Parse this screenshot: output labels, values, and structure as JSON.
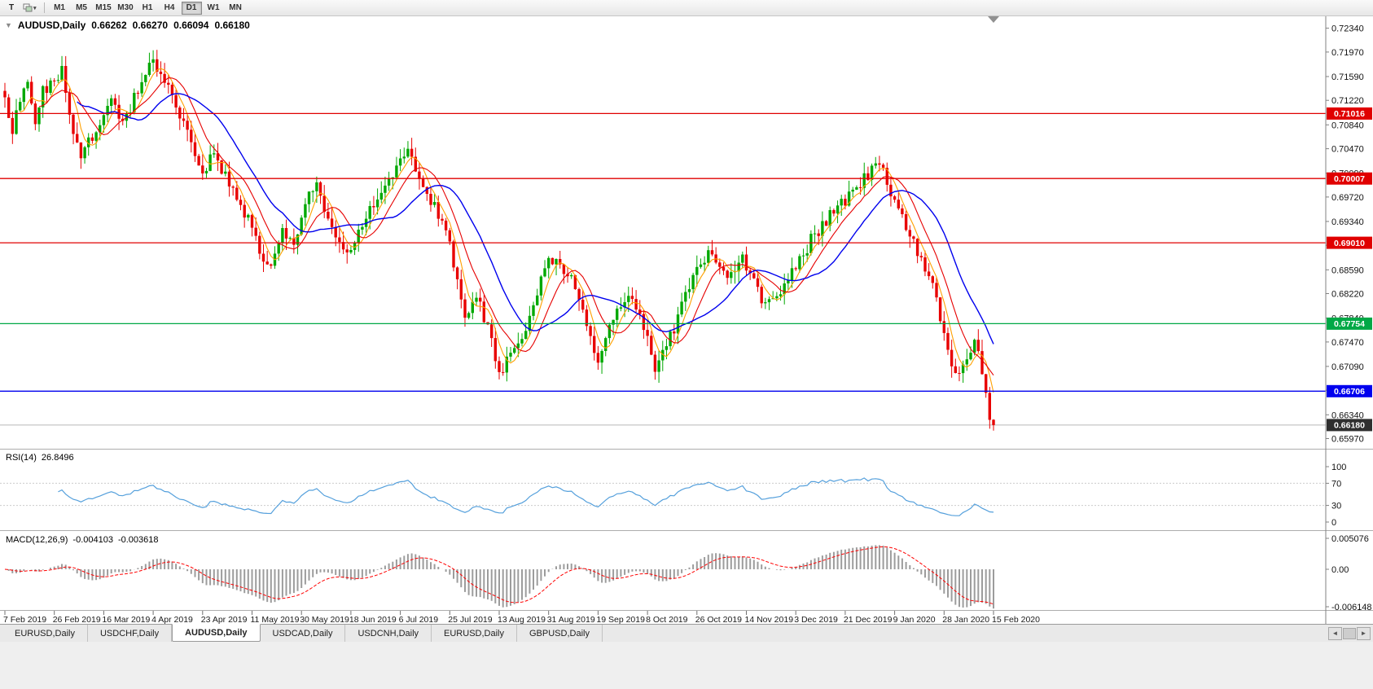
{
  "toolbar": {
    "text_tool_label": "T",
    "dropdown_arrow": "▾",
    "timeframes": [
      "M1",
      "M5",
      "M15",
      "M30",
      "H1",
      "H4",
      "D1",
      "W1",
      "MN"
    ],
    "active_timeframe": "D1"
  },
  "chart_header": {
    "collapse_arrow": "▼",
    "symbol": "AUDUSD,Daily",
    "open": "0.66262",
    "high": "0.66270",
    "low": "0.66094",
    "close": "0.66180"
  },
  "price_axis": {
    "ticks": [
      "0.72340",
      "0.71970",
      "0.71590",
      "0.71220",
      "0.70840",
      "0.70470",
      "0.70090",
      "0.69720",
      "0.69340",
      "0.68970",
      "0.68590",
      "0.68220",
      "0.67840",
      "0.67470",
      "0.67090",
      "0.66720",
      "0.66340",
      "0.65970"
    ]
  },
  "chart_data": {
    "type": "candlestick",
    "symbol": "AUDUSD",
    "timeframe": "Daily",
    "candle_count": 261,
    "seed": 20200215,
    "noise": 0.002,
    "wick": 0.0018,
    "price_range": {
      "top": 0.72525,
      "bottom": 0.65825
    },
    "last_candle": {
      "o": 0.66262,
      "h": 0.6627,
      "l": 0.66094,
      "c": 0.6618
    },
    "current_price": 0.6618,
    "current_price_label": "0.66180",
    "price_anchors": [
      [
        0,
        0.712
      ],
      [
        2,
        0.7078
      ],
      [
        4,
        0.7122
      ],
      [
        6,
        0.7148
      ],
      [
        8,
        0.7092
      ],
      [
        10,
        0.7138
      ],
      [
        13,
        0.715
      ],
      [
        15,
        0.7168
      ],
      [
        17,
        0.7098
      ],
      [
        20,
        0.7035
      ],
      [
        23,
        0.7068
      ],
      [
        26,
        0.7105
      ],
      [
        29,
        0.7122
      ],
      [
        31,
        0.7082
      ],
      [
        34,
        0.7128
      ],
      [
        37,
        0.7158
      ],
      [
        39,
        0.7188
      ],
      [
        41,
        0.716
      ],
      [
        44,
        0.7132
      ],
      [
        47,
        0.7088
      ],
      [
        50,
        0.7042
      ],
      [
        52,
        0.7012
      ],
      [
        55,
        0.7038
      ],
      [
        58,
        0.7002
      ],
      [
        61,
        0.6968
      ],
      [
        64,
        0.6935
      ],
      [
        67,
        0.6888
      ],
      [
        70,
        0.6868
      ],
      [
        73,
        0.6918
      ],
      [
        76,
        0.6905
      ],
      [
        78,
        0.6932
      ],
      [
        80,
        0.6978
      ],
      [
        82,
        0.6988
      ],
      [
        85,
        0.6932
      ],
      [
        88,
        0.6898
      ],
      [
        91,
        0.6882
      ],
      [
        94,
        0.6928
      ],
      [
        97,
        0.6962
      ],
      [
        100,
        0.6992
      ],
      [
        102,
        0.7012
      ],
      [
        104,
        0.704
      ],
      [
        106,
        0.7044
      ],
      [
        108,
        0.7018
      ],
      [
        111,
        0.6978
      ],
      [
        114,
        0.6948
      ],
      [
        117,
        0.6908
      ],
      [
        119,
        0.6835
      ],
      [
        121,
        0.6792
      ],
      [
        124,
        0.6818
      ],
      [
        127,
        0.6772
      ],
      [
        130,
        0.6698
      ],
      [
        132,
        0.6718
      ],
      [
        135,
        0.6742
      ],
      [
        138,
        0.6778
      ],
      [
        141,
        0.6842
      ],
      [
        143,
        0.6878
      ],
      [
        146,
        0.6862
      ],
      [
        149,
        0.6845
      ],
      [
        152,
        0.6792
      ],
      [
        154,
        0.6748
      ],
      [
        156,
        0.6718
      ],
      [
        158,
        0.6762
      ],
      [
        161,
        0.6798
      ],
      [
        164,
        0.6818
      ],
      [
        167,
        0.6782
      ],
      [
        169,
        0.6752
      ],
      [
        171,
        0.6708
      ],
      [
        173,
        0.6728
      ],
      [
        176,
        0.6768
      ],
      [
        179,
        0.6822
      ],
      [
        182,
        0.6858
      ],
      [
        185,
        0.6882
      ],
      [
        188,
        0.6868
      ],
      [
        191,
        0.6848
      ],
      [
        194,
        0.6878
      ],
      [
        197,
        0.6842
      ],
      [
        200,
        0.6802
      ],
      [
        203,
        0.6812
      ],
      [
        206,
        0.6848
      ],
      [
        209,
        0.6872
      ],
      [
        212,
        0.6905
      ],
      [
        215,
        0.6928
      ],
      [
        218,
        0.6955
      ],
      [
        221,
        0.6962
      ],
      [
        224,
        0.6988
      ],
      [
        227,
        0.7008
      ],
      [
        229,
        0.7026
      ],
      [
        231,
        0.701
      ],
      [
        234,
        0.6962
      ],
      [
        237,
        0.6928
      ],
      [
        240,
        0.6888
      ],
      [
        243,
        0.6852
      ],
      [
        245,
        0.6815
      ],
      [
        247,
        0.6762
      ],
      [
        249,
        0.6718
      ],
      [
        251,
        0.6695
      ],
      [
        253,
        0.6728
      ],
      [
        255,
        0.6748
      ],
      [
        257,
        0.67
      ],
      [
        258,
        0.6672
      ],
      [
        259,
        0.66262
      ],
      [
        260,
        0.6618
      ]
    ],
    "date_labels": [
      "7 Feb 2019",
      "26 Feb 2019",
      "16 Mar 2019",
      "4 Apr 2019",
      "23 Apr 2019",
      "11 May 2019",
      "30 May 2019",
      "18 Jun 2019",
      "6 Jul 2019",
      "25 Jul 2019",
      "13 Aug 2019",
      "31 Aug 2019",
      "19 Sep 2019",
      "8 Oct 2019",
      "26 Oct 2019",
      "14 Nov 2019",
      "3 Dec 2019",
      "21 Dec 2019",
      "9 Jan 2020",
      "28 Jan 2020",
      "15 Feb 2020"
    ],
    "label_step": 13,
    "moving_averages": [
      {
        "name": "fast",
        "period": 5,
        "color": "#ffa000",
        "width": 1.1
      },
      {
        "name": "mid",
        "period": 10,
        "color": "#e60000",
        "width": 1.1
      },
      {
        "name": "slow",
        "period": 20,
        "color": "#0000ee",
        "width": 1.4
      }
    ],
    "horizontal_lines": [
      {
        "price": 0.71016,
        "label": "0.71016",
        "color": "#e00000"
      },
      {
        "price": 0.70007,
        "label": "0.70007",
        "color": "#e00000"
      },
      {
        "price": 0.6901,
        "label": "0.69010",
        "color": "#e00000"
      },
      {
        "price": 0.67754,
        "label": "0.67754",
        "color": "#00a846"
      },
      {
        "price": 0.66706,
        "label": "0.66706",
        "color": "#0000ee"
      }
    ],
    "colors": {
      "up": "#00a800",
      "down": "#e80000",
      "bid_line": "#b8b8b8",
      "current_badge": "#2f2f2f"
    }
  },
  "rsi": {
    "label": "RSI(14)",
    "value": "26.8496",
    "period": 14,
    "color": "#55a0dc",
    "levels": [
      70,
      30
    ],
    "axis_ticks": [
      "100",
      "70",
      "30",
      "0"
    ]
  },
  "macd": {
    "label": "MACD(12,26,9)",
    "value_main": "-0.004103",
    "value_signal": "-0.003618",
    "fast": 12,
    "slow": 26,
    "signal": 9,
    "histogram_color": "#9c9c9c",
    "signal_color": "#ff0000",
    "axis_ticks": [
      "0.005076",
      "0.00",
      "-0.006148"
    ]
  },
  "tabs": {
    "items": [
      {
        "label": "EURUSD,Daily",
        "active": false
      },
      {
        "label": "USDCHF,Daily",
        "active": false
      },
      {
        "label": "AUDUSD,Daily",
        "active": true
      },
      {
        "label": "USDCAD,Daily",
        "active": false
      },
      {
        "label": "USDCNH,Daily",
        "active": false
      },
      {
        "label": "EURUSD,Daily",
        "active": false
      },
      {
        "label": "GBPUSD,Daily",
        "active": false
      }
    ]
  },
  "scrollbar": {
    "left_arrow": "◄",
    "right_arrow": "►"
  }
}
